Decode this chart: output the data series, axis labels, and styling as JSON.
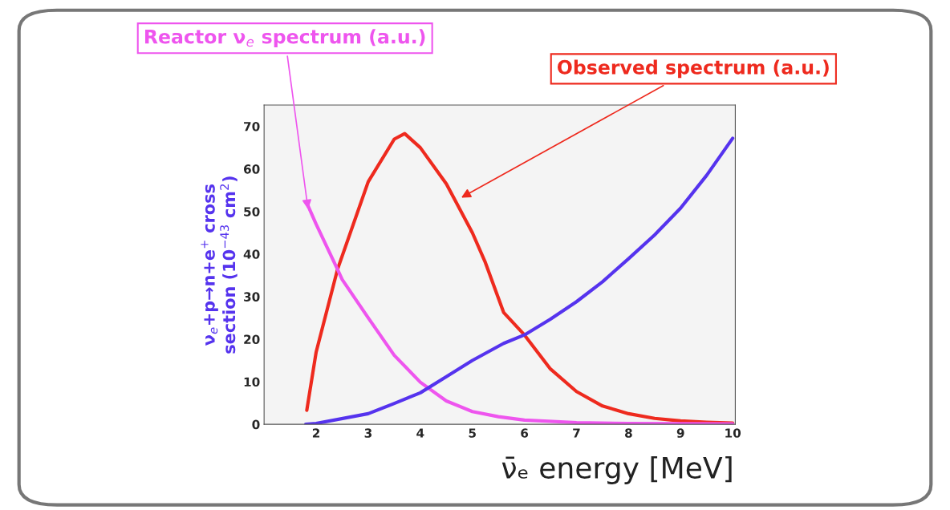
{
  "chart_data": {
    "type": "line",
    "xlabel": "ν̄ₑ energy [MeV]",
    "ylabel": "ν$_{e}$+p→n+e$^{+}$ cross\nsection (10$^{−43}$ cm$^{2}$)",
    "xlim": [
      1,
      10.05
    ],
    "ylim": [
      0,
      75
    ],
    "xticks": [
      2,
      3,
      4,
      5,
      6,
      7,
      8,
      9,
      10
    ],
    "yticks": [
      0,
      10,
      20,
      30,
      40,
      50,
      60,
      70
    ],
    "grid": false,
    "legend": false,
    "marker": "none",
    "line_style": "solid",
    "series": [
      {
        "color": "#ee2a1e",
        "x": [
          1.82,
          2,
          2.41,
          3,
          3.5,
          3.7,
          4,
          4.5,
          5,
          5.25,
          5.6,
          6,
          6.5,
          7,
          7.5,
          8,
          8.5,
          9,
          9.5,
          10
        ],
        "values": [
          3.3,
          17,
          36.4,
          57,
          67,
          68.3,
          65,
          56.5,
          45,
          38,
          26.3,
          21,
          13,
          7.7,
          4.3,
          2.5,
          1.4,
          0.8,
          0.5,
          0.3
        ]
      },
      {
        "color": "#ee55ee",
        "x": [
          1.82,
          2,
          2.41,
          2.5,
          3,
          3.5,
          4,
          4.5,
          5,
          5.5,
          6,
          7,
          8,
          10
        ],
        "values": [
          52,
          47,
          36.4,
          34,
          25,
          16.2,
          9.9,
          5.5,
          3,
          1.8,
          1.0,
          0.4,
          0.2,
          0.1
        ]
      },
      {
        "color": "#5533ee",
        "x": [
          1.8,
          2,
          3,
          3.5,
          4,
          4.5,
          5,
          5.6,
          6,
          6.5,
          7,
          7.5,
          8,
          8.5,
          9,
          9.5,
          10
        ],
        "values": [
          0,
          0.2,
          2.5,
          4.9,
          7.4,
          11.2,
          15,
          19,
          21,
          24.7,
          28.8,
          33.5,
          38.9,
          44.5,
          50.8,
          58.5,
          67.2
        ]
      }
    ],
    "annotations": [
      {
        "text": "Reactor ν$_{e}$ spectrum (a.u.)",
        "x": 1.85,
        "y": 50
      },
      {
        "text": "Observed spectrum (a.u.)",
        "x": 4.75,
        "y": 53
      }
    ]
  }
}
